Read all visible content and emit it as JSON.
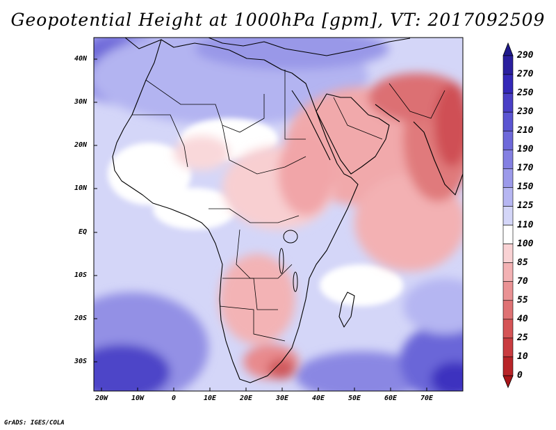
{
  "title": "Geopotential Height at 1000hPa [gpm], VT: 2017092509",
  "credit": "GrADS: IGES/COLA",
  "lat_labels": [
    "40N",
    "30N",
    "20N",
    "10N",
    "EQ",
    "10S",
    "20S",
    "30S"
  ],
  "lon_labels": [
    "20W",
    "10W",
    "0",
    "10E",
    "20E",
    "30E",
    "40E",
    "50E",
    "60E",
    "70E"
  ],
  "colorbar": {
    "labels": [
      "290",
      "270",
      "250",
      "230",
      "210",
      "190",
      "170",
      "150",
      "125",
      "110",
      "100",
      "85",
      "70",
      "55",
      "40",
      "25",
      "10",
      "0"
    ],
    "colors": [
      "#2a1f9e",
      "#3428b8",
      "#4a3fc6",
      "#5b55d2",
      "#6e69da",
      "#8480e2",
      "#9c9aea",
      "#b6b6f2",
      "#d4d6f8",
      "#ffffff",
      "#f9d2d4",
      "#f3b2b4",
      "#ea9294",
      "#df7274",
      "#d55456",
      "#c93c40",
      "#b82428"
    ]
  },
  "map": {
    "background": "#d4d6f8",
    "projection": "lat-lon",
    "lon_range": [
      -22,
      80
    ],
    "lat_range": [
      -37,
      45
    ]
  }
}
